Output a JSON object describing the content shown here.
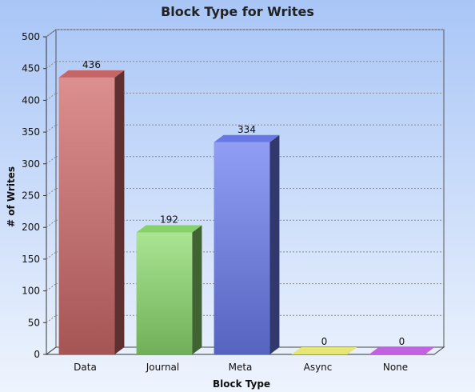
{
  "chart_data": {
    "type": "bar",
    "title": "Block Type for Writes",
    "xlabel": "Block Type",
    "ylabel": "# of Writes",
    "categories": [
      "Data",
      "Journal",
      "Meta",
      "Async",
      "None"
    ],
    "values": [
      436,
      192,
      334,
      0,
      0
    ],
    "data_labels": [
      "436",
      "192",
      "334",
      "0",
      "0"
    ],
    "ylim": [
      0,
      500
    ],
    "yticks": [
      0,
      50,
      100,
      150,
      200,
      250,
      300,
      350,
      400,
      450,
      500
    ],
    "grid": true,
    "colors": {
      "Data": "#d06a6a",
      "Journal": "#8ddc6e",
      "Meta": "#6c7df0",
      "Async": "#f2f27a",
      "None": "#cc66ee"
    },
    "background_gradient": [
      "#a9c6f7",
      "#eef4fd"
    ]
  }
}
